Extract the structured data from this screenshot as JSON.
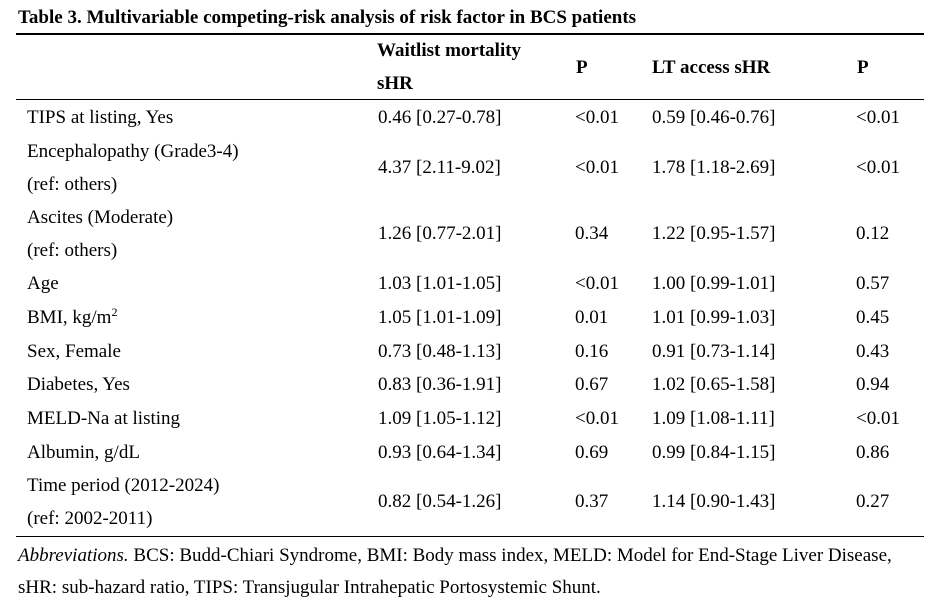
{
  "table": {
    "title": "Table 3. Multivariable competing-risk analysis of risk factor in BCS patients",
    "headers": {
      "waitlist_line1": "Waitlist mortality",
      "waitlist_line2": "sHR",
      "p1": "P",
      "lt": "LT access sHR",
      "p2": "P"
    },
    "rows": [
      {
        "label1": "TIPS at listing, Yes",
        "label2": "",
        "wm": "0.46 [0.27-0.78]",
        "p1": "<0.01",
        "lt": "0.59 [0.46-0.76]",
        "p2": "<0.01"
      },
      {
        "label1": "Encephalopathy (Grade3-4)",
        "label2": "(ref: others)",
        "wm": "4.37 [2.11-9.02]",
        "p1": "<0.01",
        "lt": "1.78 [1.18-2.69]",
        "p2": "<0.01"
      },
      {
        "label1": "Ascites (Moderate)",
        "label2": "(ref: others)",
        "wm": "1.26 [0.77-2.01]",
        "p1": "0.34",
        "lt": "1.22 [0.95-1.57]",
        "p2": "0.12"
      },
      {
        "label1": "Age",
        "label2": "",
        "wm": "1.03 [1.01-1.05]",
        "p1": "<0.01",
        "lt": "1.00 [0.99-1.01]",
        "p2": "0.57"
      },
      {
        "label1": "BMI, kg/m",
        "label_sup": "2",
        "label2": "",
        "wm": "1.05 [1.01-1.09]",
        "p1": "0.01",
        "lt": "1.01 [0.99-1.03]",
        "p2": "0.45"
      },
      {
        "label1": "Sex, Female",
        "label2": "",
        "wm": "0.73 [0.48-1.13]",
        "p1": "0.16",
        "lt": "0.91 [0.73-1.14]",
        "p2": "0.43"
      },
      {
        "label1": "Diabetes, Yes",
        "label2": "",
        "wm": "0.83 [0.36-1.91]",
        "p1": "0.67",
        "lt": "1.02 [0.65-1.58]",
        "p2": "0.94"
      },
      {
        "label1": "MELD-Na at listing",
        "label2": "",
        "wm": "1.09 [1.05-1.12]",
        "p1": "<0.01",
        "lt": "1.09 [1.08-1.11]",
        "p2": "<0.01"
      },
      {
        "label1": "Albumin, g/dL",
        "label2": "",
        "wm": "0.93 [0.64-1.34]",
        "p1": "0.69",
        "lt": "0.99 [0.84-1.15]",
        "p2": "0.86"
      },
      {
        "label1": "Time period (2012-2024)",
        "label2": "(ref: 2002-2011)",
        "wm": "0.82 [0.54-1.26]",
        "p1": "0.37",
        "lt": "1.14 [0.90-1.43]",
        "p2": "0.27"
      }
    ],
    "notes": {
      "label": "Abbreviations.",
      "text": " BCS: Budd-Chiari Syndrome, BMI: Body mass index, MELD: Model for End-Stage Liver Disease, sHR: sub-hazard ratio, TIPS: Transjugular Intrahepatic Portosystemic Shunt."
    }
  }
}
